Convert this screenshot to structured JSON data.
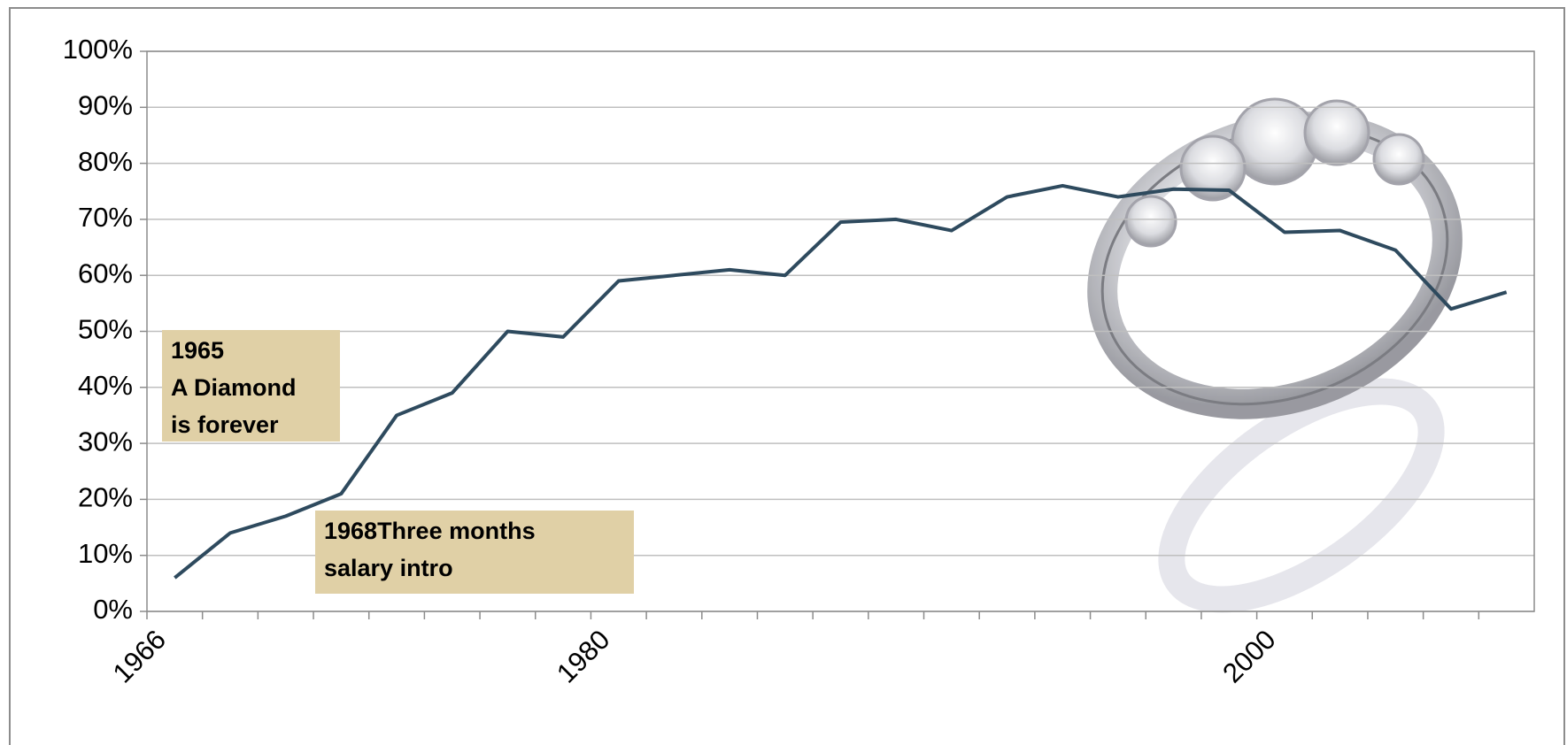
{
  "chart_data": {
    "type": "line",
    "categories": [
      "1966",
      null,
      null,
      null,
      null,
      null,
      null,
      null,
      "1980",
      null,
      null,
      null,
      null,
      null,
      null,
      null,
      null,
      null,
      null,
      null,
      "2000",
      null,
      null,
      null,
      null
    ],
    "values": [
      6,
      14,
      17,
      21,
      35,
      39,
      50,
      49,
      59,
      60,
      61,
      60,
      69.5,
      70,
      68,
      74,
      76,
      74,
      75.4,
      75.2,
      67.7,
      68,
      64.5,
      54,
      57
    ],
    "color": "#2e4a5e",
    "ylim": [
      0,
      100
    ],
    "yticks": [
      {
        "value": 0,
        "label": "0%"
      },
      {
        "value": 10,
        "label": "10%"
      },
      {
        "value": 20,
        "label": "20%"
      },
      {
        "value": 30,
        "label": "30%"
      },
      {
        "value": 40,
        "label": "40%"
      },
      {
        "value": 50,
        "label": "50%"
      },
      {
        "value": 60,
        "label": "60%"
      },
      {
        "value": 70,
        "label": "70%"
      },
      {
        "value": 80,
        "label": "80%"
      },
      {
        "value": 90,
        "label": "90%"
      },
      {
        "value": 100,
        "label": "100%"
      }
    ],
    "grid": true,
    "annotations": [
      {
        "lines": [
          "1965",
          "A Diamond",
          "is forever"
        ]
      },
      {
        "lines": [
          "1968Three months",
          "salary intro"
        ]
      }
    ]
  }
}
